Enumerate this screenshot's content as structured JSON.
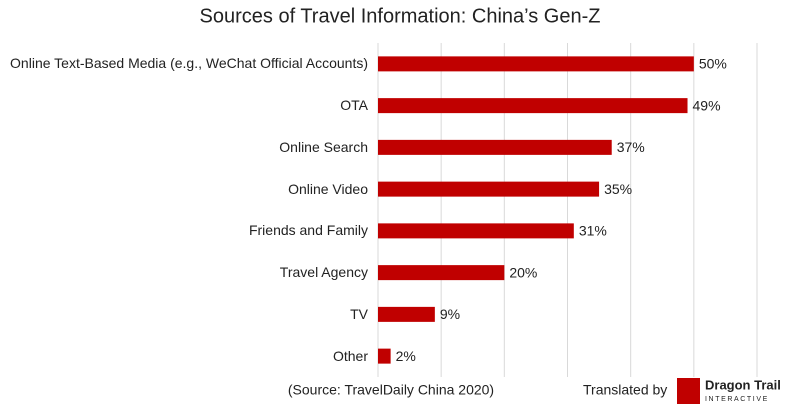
{
  "chart_data": {
    "type": "bar",
    "orientation": "horizontal",
    "title": "Sources of Travel Information: China’s Gen-Z",
    "categories": [
      "Online Text-Based Media (e.g., WeChat Official Accounts)",
      "OTA",
      "Online Search",
      "Online Video",
      "Friends and Family",
      "Travel Agency",
      "TV",
      "Other"
    ],
    "values": [
      50,
      49,
      37,
      35,
      31,
      20,
      9,
      2
    ],
    "value_labels": [
      "50%",
      "49%",
      "37%",
      "35%",
      "31%",
      "20%",
      "9%",
      "2%"
    ],
    "color": "#c00000",
    "xlim": [
      0,
      60
    ],
    "xticks": [
      0,
      10,
      20,
      30,
      40,
      50,
      60
    ],
    "grid": true,
    "source": "(Source: TravelDaily China 2020)",
    "credit": "Translated by",
    "logo": {
      "name": "Dragon Trail",
      "tagline": "INTERACTIVE"
    }
  }
}
